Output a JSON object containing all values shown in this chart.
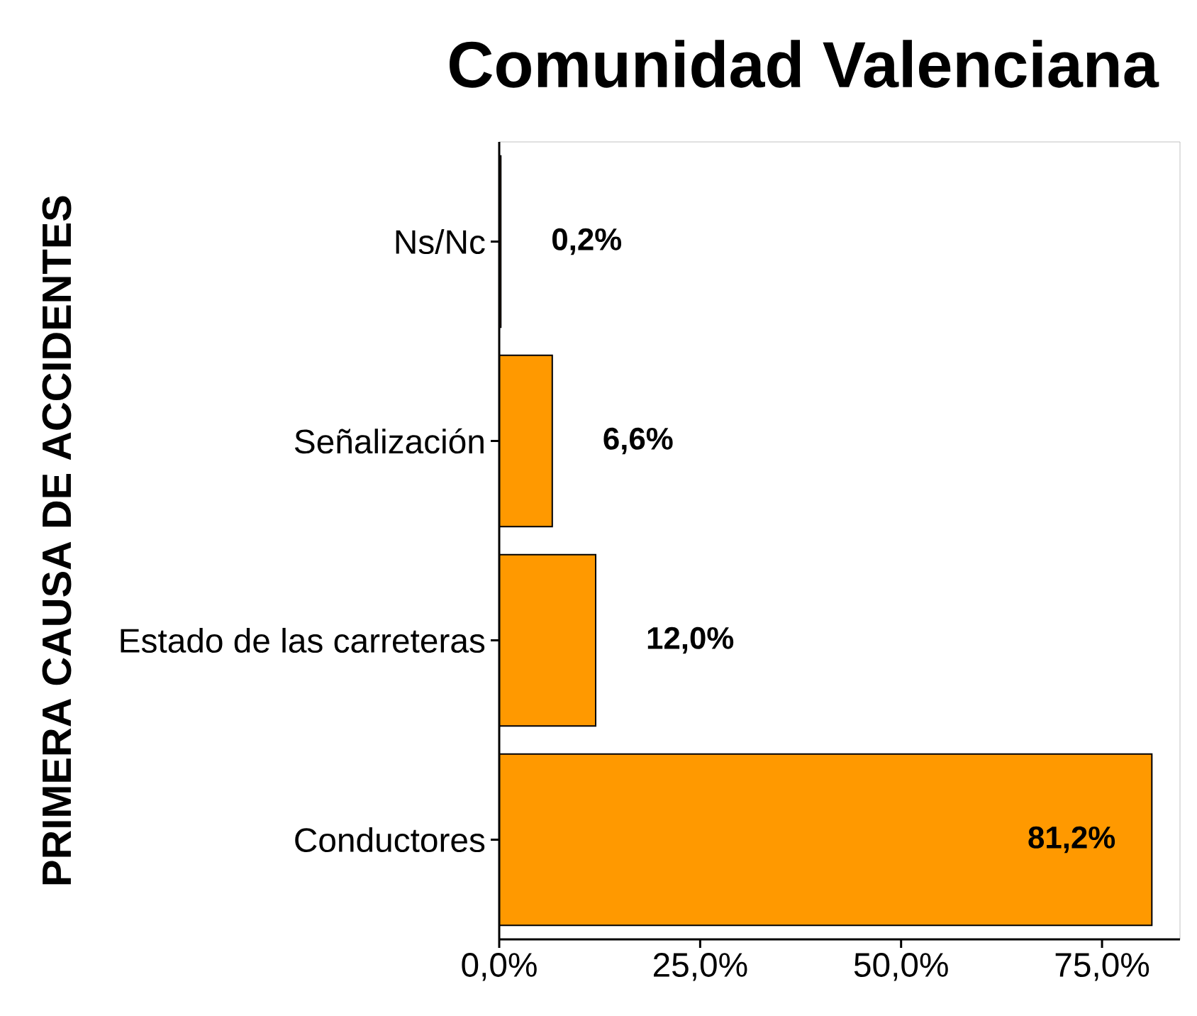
{
  "chart_data": {
    "type": "bar",
    "orientation": "horizontal",
    "title": "Comunidad Valenciana",
    "ylabel": "PRIMERA CAUSA DE ACCIDENTES",
    "categories": [
      "Ns/Nc",
      "Señalización",
      "Estado de las carreteras",
      "Conductores"
    ],
    "values": [
      0.2,
      6.6,
      12.0,
      81.2
    ],
    "value_labels": [
      "0,2%",
      "6,6%",
      "12,0%",
      "81,2%"
    ],
    "color": "#ff9900",
    "xlim": [
      0,
      84.7
    ],
    "xticks": [
      {
        "value": 0,
        "label": "0,0%"
      },
      {
        "value": 25,
        "label": "25,0%"
      },
      {
        "value": 50,
        "label": "50,0%"
      },
      {
        "value": 75,
        "label": "75,0%"
      }
    ]
  }
}
